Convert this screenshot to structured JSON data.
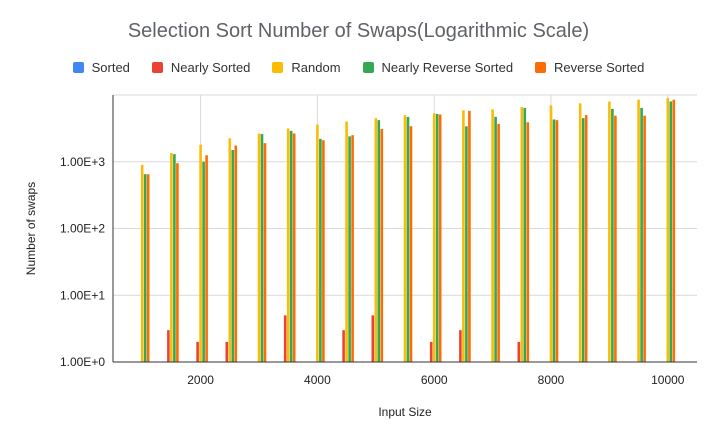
{
  "chart_data": {
    "type": "bar",
    "title": "Selection Sort Number of Swaps(Logarithmic Scale)",
    "xlabel": "Input Size",
    "ylabel": "Number of swaps",
    "y_scale": "log",
    "ylim": [
      1,
      10000
    ],
    "xlim": [
      500,
      10500
    ],
    "x_ticks": [
      2000,
      4000,
      6000,
      8000,
      10000
    ],
    "x_tick_labels": [
      "2000",
      "4000",
      "6000",
      "8000",
      "10000"
    ],
    "y_ticks": [
      1,
      10,
      100,
      1000
    ],
    "y_tick_labels": [
      "1.00E+0",
      "1.00E+1",
      "1.00E+2",
      "1.00E+3"
    ],
    "grid": "major gridlines",
    "legend_position": "top",
    "x": [
      1000,
      1500,
      2000,
      2500,
      3000,
      3500,
      4000,
      4500,
      5000,
      5500,
      6000,
      6500,
      7000,
      7500,
      8000,
      8500,
      9000,
      9500,
      10000
    ],
    "series": [
      {
        "name": "Sorted",
        "color": "#4285f4",
        "values": [
          1,
          1,
          1,
          1,
          1,
          1,
          1,
          1,
          1,
          1,
          1,
          1,
          1,
          1,
          1,
          1,
          1,
          1,
          1
        ]
      },
      {
        "name": "Nearly Sorted",
        "color": "#ea4335",
        "values": [
          1,
          3,
          2,
          2,
          1,
          5,
          1,
          3,
          5,
          1,
          2,
          3,
          1,
          2,
          1,
          1,
          1,
          1,
          1
        ]
      },
      {
        "name": "Random",
        "color": "#fbbc04",
        "values": [
          900,
          1350,
          1800,
          2250,
          2650,
          3150,
          3600,
          4000,
          4500,
          5000,
          5300,
          5900,
          6100,
          6600,
          7000,
          7500,
          8000,
          8500,
          9000
        ]
      },
      {
        "name": "Nearly Reverse Sorted",
        "color": "#34a853",
        "values": [
          650,
          1300,
          1000,
          1500,
          2600,
          2900,
          2200,
          2400,
          4200,
          4700,
          5200,
          3400,
          4700,
          6400,
          4300,
          4500,
          6200,
          6400,
          8000
        ]
      },
      {
        "name": "Reverse Sorted",
        "color": "#ff6d01",
        "values": [
          650,
          950,
          1250,
          1750,
          1900,
          2650,
          2100,
          2500,
          3100,
          3400,
          5100,
          5800,
          3700,
          3900,
          4200,
          5000,
          4900,
          4900,
          8500
        ]
      }
    ]
  }
}
